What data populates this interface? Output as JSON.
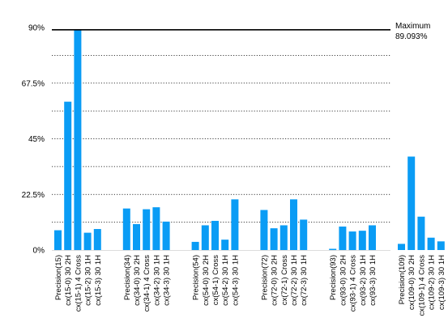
{
  "chart_data": {
    "type": "bar",
    "title": "",
    "xlabel": "",
    "ylabel": "",
    "ylim": [
      0,
      90
    ],
    "y_ticks": [
      "0%",
      "22.5%",
      "45%",
      "67.5%",
      "90%"
    ],
    "y_tick_values": [
      0,
      22.5,
      45,
      67.5,
      90
    ],
    "grid": "dotted horizontal lines",
    "bar_color": "#0a9cf5",
    "reference_line": {
      "label": "Maximum",
      "value_label": "89.093%",
      "value": 89.093
    },
    "groups": [
      {
        "categories": [
          "Precision(15)",
          "cx(15-0) 30 2H",
          "cx(15-1) 4 Cross",
          "cx(15-2) 30 1H",
          "cx(15-3) 30 1H"
        ],
        "values": [
          8,
          60,
          89.093,
          7,
          8.5
        ]
      },
      {
        "categories": [
          "Precision(34)",
          "cx(34-0) 30 2H",
          "cx(34-1) 4 Cross",
          "cx(34-2) 30 1H",
          "cx(34-3) 30 1H"
        ],
        "values": [
          16.8,
          10.5,
          16.5,
          17.3,
          11.5
        ]
      },
      {
        "categories": [
          "Precision(54)",
          "cx(54-0) 30 2H",
          "cx(54-1) Cross",
          "cx(54-2) 30 1H",
          "cx(54-3) 30 1H"
        ],
        "values": [
          3.3,
          10.0,
          11.8,
          4.2,
          20.5
        ]
      },
      {
        "categories": [
          "Precision(72)",
          "cx(72-0) 30 2H",
          "cx(72-1) Cross",
          "cx(72-2) 30 1H",
          "cx(72-3) 30 1H"
        ],
        "values": [
          16.2,
          8.8,
          10.0,
          20.5,
          12.3
        ]
      },
      {
        "categories": [
          "Precision(93)",
          "cx(93-0) 30 2H",
          "cx(93-1) 4 Cross",
          "cx(93-2) 30 1H",
          "cx(93-3) 30 1H"
        ],
        "values": [
          0.5,
          9.5,
          7.5,
          7.8,
          10.0
        ]
      },
      {
        "categories": [
          "Precision(109)",
          "cx(109-0) 30 2H",
          "cx(109-1) 4 Cross",
          "cx(109-2) 30 1H",
          "cx(109-3) 30 1H"
        ],
        "values": [
          2.5,
          37.8,
          13.5,
          5.0,
          3.5
        ]
      }
    ]
  }
}
